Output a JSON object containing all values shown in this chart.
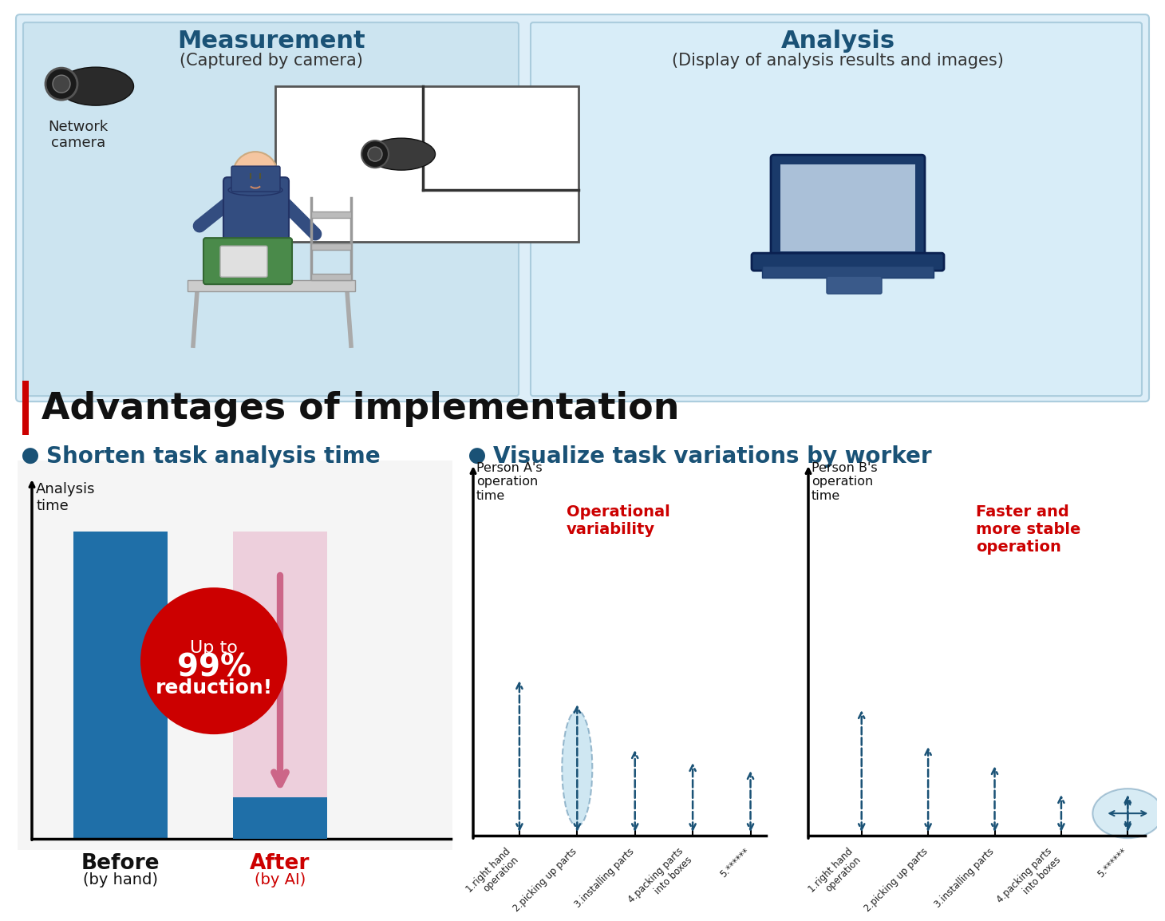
{
  "bg_color": "#ffffff",
  "top_bg_color": "#ddeef8",
  "measurement_title": "Measurement",
  "measurement_subtitle": "(Captured by camera)",
  "analysis_title": "Analysis",
  "analysis_subtitle": "(Display of analysis results and images)",
  "network_camera_label": "Network\ncamera",
  "section_title": "Advantages of implementation",
  "section_title_bar_color": "#cc0000",
  "bullet_color": "#1a5276",
  "shorten_title": "Shorten task analysis time",
  "visualize_title": "Visualize task variations by worker",
  "analysis_time_label": "Analysis\ntime",
  "before_label": "Before",
  "before_sub": "(by hand)",
  "after_label": "After",
  "after_sub": "(by AI)",
  "before_bar_color": "#1f6fa8",
  "after_bar_color": "#1f6fa8",
  "red_circle_color": "#cc0000",
  "person_a_label": "Person A's\noperation\ntime",
  "person_b_label": "Person B's\noperation\ntime",
  "op_variability_text": "Operational\nvariability",
  "faster_stable_text": "Faster and\nmore stable\noperation",
  "x_labels": [
    "1.right hand\noperation",
    "2.picking up parts",
    "3.installing parts",
    "4.packing parts\ninto boxes",
    "5.******"
  ],
  "ellipse_color": "#a8d4e8",
  "arrow_color": "#1a5276",
  "header_title_color": "#1a5276"
}
